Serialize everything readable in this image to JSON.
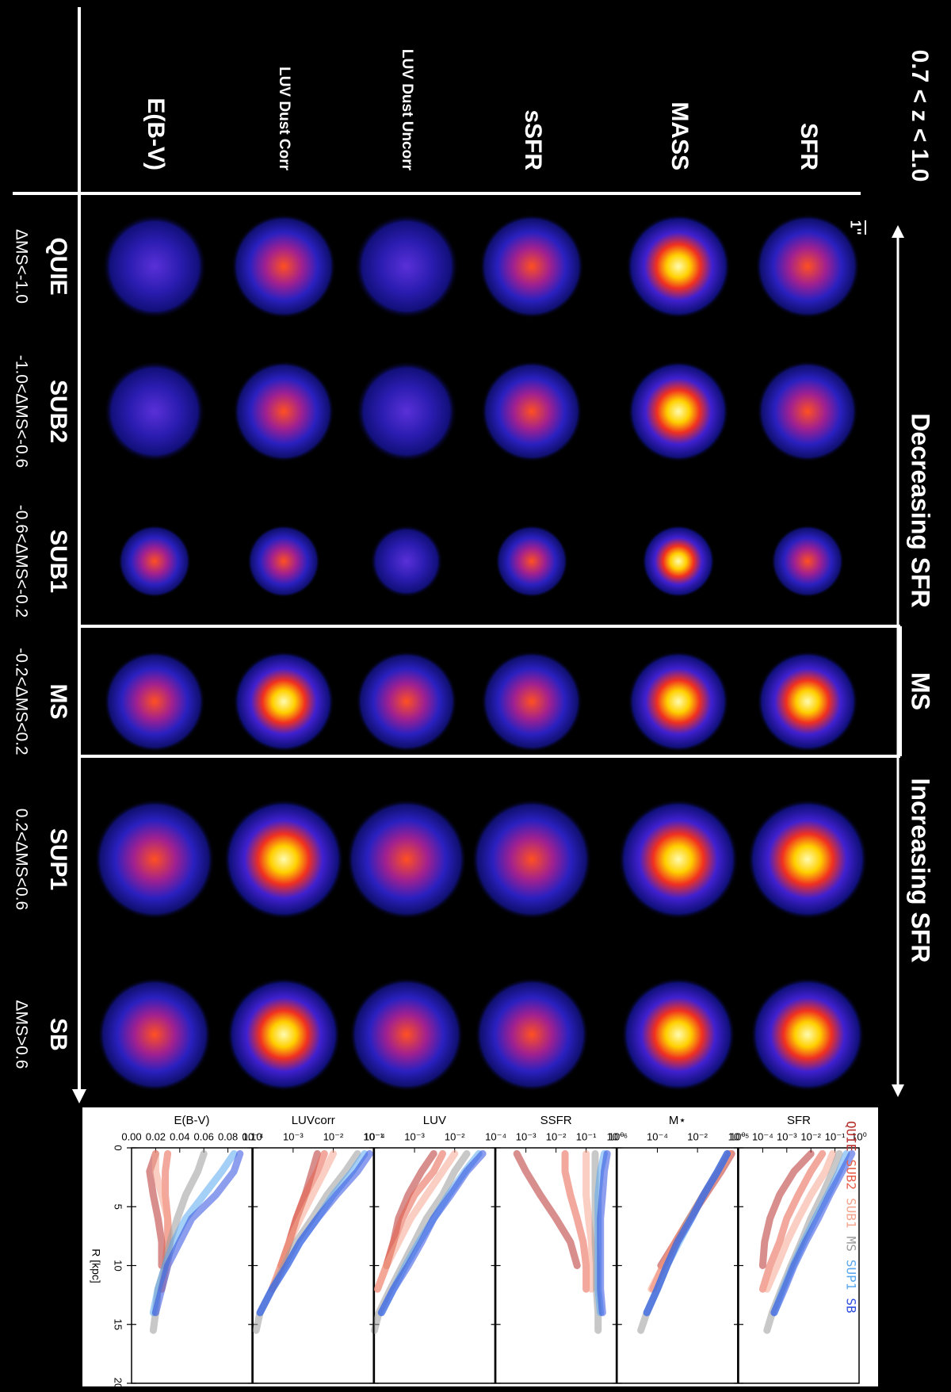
{
  "title": "0.7 < z < 1.0",
  "rows": [
    "SFR",
    "MASS",
    "sSFR",
    "LUV Dust Uncorr",
    "LUV Dust Corr",
    "E(B-V)"
  ],
  "columns": [
    {
      "label": "QUIE",
      "range": "ΔMS<-1.0"
    },
    {
      "label": "SUB2",
      "range": "-1.0<ΔMS<-0.6"
    },
    {
      "label": "SUB1",
      "range": "-0.6<ΔMS<-0.2"
    },
    {
      "label": "MS",
      "range": "-0.2<ΔMS<0.2"
    },
    {
      "label": "SUP1",
      "range": "0.2<ΔMS<0.6"
    },
    {
      "label": "SB",
      "range": "ΔMS>0.6"
    }
  ],
  "scale_bar": "1''",
  "side_labels": [
    "Decreasing SFR",
    "MS",
    "Increasing SFR"
  ],
  "chart_data": [
    {
      "type": "line",
      "title": "SFR",
      "log": true,
      "x": [
        0.5,
        2,
        4,
        6,
        8,
        10,
        12,
        14,
        15.5
      ],
      "xlim": [
        0,
        20
      ],
      "xticks": [
        0,
        5,
        10,
        15,
        20
      ],
      "ylim": [
        1e-05,
        1
      ],
      "yticks": [
        {
          "value": 1e-05,
          "label": "10⁻⁵"
        },
        {
          "value": 0.0001,
          "label": "10⁻⁴"
        },
        {
          "value": 0.001,
          "label": "10⁻³"
        },
        {
          "value": 0.01,
          "label": "10⁻²"
        },
        {
          "value": 0.1,
          "label": "10⁻¹"
        },
        {
          "value": 1,
          "label": "10⁰"
        }
      ],
      "series": [
        {
          "name": "QUIE",
          "color": "#b8312f",
          "values": [
            0.01,
            0.002,
            0.0005,
            0.0002,
            0.00012,
            0.0001,
            null,
            null,
            null
          ]
        },
        {
          "name": "SUB2",
          "color": "#e8604c",
          "values": [
            0.03,
            0.01,
            0.003,
            0.001,
            0.0005,
            0.0002,
            0.0001,
            null,
            null
          ]
        },
        {
          "name": "SUB1",
          "color": "#f5a58f",
          "values": [
            0.08,
            0.04,
            0.01,
            0.003,
            0.001,
            0.0004,
            0.00015,
            null,
            null
          ]
        },
        {
          "name": "MS",
          "color": "#9a9a9a",
          "values": [
            0.15,
            0.08,
            0.03,
            0.01,
            0.004,
            0.0015,
            0.0006,
            0.00025,
            0.00015
          ]
        },
        {
          "name": "SUP1",
          "color": "#5aa8f0",
          "values": [
            0.3,
            0.15,
            0.05,
            0.015,
            0.005,
            0.0018,
            0.0007,
            0.0003,
            null
          ]
        },
        {
          "name": "SB",
          "color": "#2f4fe0",
          "values": [
            0.5,
            0.2,
            0.06,
            0.02,
            0.006,
            0.002,
            0.0008,
            0.0003,
            null
          ]
        }
      ]
    },
    {
      "type": "line",
      "title": "M⋆",
      "log": true,
      "x": [
        0.5,
        2,
        4,
        6,
        8,
        10,
        12,
        14,
        15.5
      ],
      "xlim": [
        0,
        20
      ],
      "xticks": [
        0,
        5,
        10,
        15,
        20
      ],
      "ylim": [
        1e-06,
        1
      ],
      "yticks": [
        {
          "value": 1e-06,
          "label": "10⁻⁶"
        },
        {
          "value": 0.0001,
          "label": "10⁻⁴"
        },
        {
          "value": 0.01,
          "label": "10⁻²"
        },
        {
          "value": 1,
          "label": "10⁰"
        }
      ],
      "series": [
        {
          "color": "#b8312f",
          "values": [
            0.5,
            0.15,
            0.025,
            0.004,
            0.0008,
            0.00015,
            null,
            null,
            null
          ]
        },
        {
          "color": "#e8604c",
          "values": [
            0.4,
            0.12,
            0.02,
            0.004,
            0.0008,
            0.0002,
            6e-05,
            null,
            null
          ]
        },
        {
          "color": "#f5a58f",
          "values": [
            0.4,
            0.12,
            0.02,
            0.004,
            0.0008,
            0.0002,
            5e-05,
            null,
            null
          ]
        },
        {
          "color": "#9a9a9a",
          "values": [
            0.3,
            0.1,
            0.02,
            0.004,
            0.001,
            0.0003,
            0.0001,
            3e-05,
            1.5e-05
          ]
        },
        {
          "color": "#5aa8f0",
          "values": [
            0.3,
            0.1,
            0.02,
            0.005,
            0.0012,
            0.0003,
            0.0001,
            3e-05,
            null
          ]
        },
        {
          "color": "#2f4fe0",
          "values": [
            0.3,
            0.1,
            0.02,
            0.005,
            0.001,
            0.0003,
            0.0001,
            3e-05,
            null
          ]
        }
      ]
    },
    {
      "type": "line",
      "title": "SSFR",
      "log": true,
      "x": [
        0.5,
        2,
        4,
        6,
        8,
        10,
        12,
        14,
        15.5
      ],
      "xlim": [
        0,
        20
      ],
      "xticks": [
        0,
        5,
        10,
        15,
        20
      ],
      "ylim": [
        0.0001,
        1
      ],
      "yticks": [
        {
          "value": 0.0001,
          "label": "10⁻⁴"
        },
        {
          "value": 0.001,
          "label": "10⁻³"
        },
        {
          "value": 0.01,
          "label": "10⁻²"
        },
        {
          "value": 0.1,
          "label": "10⁻¹"
        },
        {
          "value": 1,
          "label": "10⁰"
        }
      ],
      "series": [
        {
          "color": "#b8312f",
          "values": [
            0.0005,
            0.001,
            0.003,
            0.01,
            0.03,
            0.05,
            null,
            null,
            null
          ]
        },
        {
          "color": "#e8604c",
          "values": [
            0.02,
            0.02,
            0.03,
            0.05,
            0.08,
            0.1,
            0.1,
            null,
            null
          ]
        },
        {
          "color": "#f5a58f",
          "values": [
            0.1,
            0.1,
            0.1,
            0.12,
            0.15,
            0.15,
            0.15,
            null,
            null
          ]
        },
        {
          "color": "#9a9a9a",
          "values": [
            0.2,
            0.2,
            0.2,
            0.2,
            0.2,
            0.22,
            0.22,
            0.25,
            0.25
          ]
        },
        {
          "color": "#5aa8f0",
          "values": [
            0.4,
            0.3,
            0.25,
            0.25,
            0.25,
            0.25,
            0.25,
            0.3,
            null
          ]
        },
        {
          "color": "#2f4fe0",
          "values": [
            0.5,
            0.4,
            0.35,
            0.3,
            0.3,
            0.3,
            0.3,
            0.35,
            null
          ]
        }
      ]
    },
    {
      "type": "line",
      "title": "LUV",
      "log": true,
      "x": [
        0.5,
        2,
        4,
        6,
        8,
        10,
        12,
        14,
        15.5
      ],
      "xlim": [
        0,
        20
      ],
      "xticks": [
        0,
        5,
        10,
        15,
        20
      ],
      "ylim": [
        0.0001,
        0.1
      ],
      "yticks": [
        {
          "value": 0.0001,
          "label": "10⁻⁴"
        },
        {
          "value": 0.001,
          "label": "10⁻³"
        },
        {
          "value": 0.01,
          "label": "10⁻²"
        }
      ],
      "series": [
        {
          "color": "#b8312f",
          "values": [
            0.003,
            0.0015,
            0.0007,
            0.0004,
            0.0003,
            0.0002,
            null,
            null,
            null
          ]
        },
        {
          "color": "#e8604c",
          "values": [
            0.005,
            0.003,
            0.001,
            0.0005,
            0.0003,
            0.0002,
            0.00012,
            null,
            null
          ]
        },
        {
          "color": "#f5a58f",
          "values": [
            0.01,
            0.005,
            0.002,
            0.0008,
            0.0004,
            0.0002,
            0.00012,
            null,
            null
          ]
        },
        {
          "color": "#9a9a9a",
          "values": [
            0.02,
            0.01,
            0.005,
            0.002,
            0.001,
            0.0005,
            0.00025,
            0.00013,
            0.0001
          ]
        },
        {
          "color": "#5aa8f0",
          "values": [
            0.04,
            0.018,
            0.007,
            0.003,
            0.0013,
            0.0006,
            0.0003,
            0.00015,
            null
          ]
        },
        {
          "color": "#2f4fe0",
          "values": [
            0.05,
            0.02,
            0.008,
            0.003,
            0.0015,
            0.0007,
            0.0003,
            0.00015,
            null
          ]
        }
      ]
    },
    {
      "type": "line",
      "title": "LUVcorr",
      "log": true,
      "x": [
        0.5,
        2,
        4,
        6,
        8,
        10,
        12,
        14,
        15.5
      ],
      "xlim": [
        0,
        20
      ],
      "xticks": [
        0,
        5,
        10,
        15,
        20
      ],
      "ylim": [
        0.0001,
        0.1
      ],
      "yticks": [
        {
          "value": 0.0001,
          "label": "10⁻⁴"
        },
        {
          "value": 0.001,
          "label": "10⁻³"
        },
        {
          "value": 0.01,
          "label": "10⁻²"
        },
        {
          "value": 0.1,
          "label": "10⁻¹"
        }
      ],
      "series": [
        {
          "color": "#b8312f",
          "values": [
            0.004,
            0.003,
            0.002,
            0.0012,
            0.0008,
            0.0005,
            null,
            null,
            null
          ]
        },
        {
          "color": "#e8604c",
          "values": [
            0.006,
            0.004,
            0.002,
            0.0012,
            0.0008,
            0.0005,
            0.0003,
            null,
            null
          ]
        },
        {
          "color": "#f5a58f",
          "values": [
            0.01,
            0.006,
            0.003,
            0.0015,
            0.0008,
            0.0005,
            0.0003,
            null,
            null
          ]
        },
        {
          "color": "#9a9a9a",
          "values": [
            0.04,
            0.02,
            0.007,
            0.003,
            0.0012,
            0.0006,
            0.0003,
            0.00015,
            0.00012
          ]
        },
        {
          "color": "#5aa8f0",
          "values": [
            0.06,
            0.03,
            0.01,
            0.004,
            0.0015,
            0.0007,
            0.0003,
            0.00015,
            null
          ]
        },
        {
          "color": "#2f4fe0",
          "values": [
            0.08,
            0.04,
            0.012,
            0.004,
            0.0015,
            0.0007,
            0.0003,
            0.00015,
            null
          ]
        }
      ]
    },
    {
      "type": "line",
      "title": "E(B-V)",
      "log": false,
      "xlabel": "R [kpc]",
      "x": [
        0.5,
        2,
        4,
        6,
        8,
        10,
        12,
        14,
        15.5
      ],
      "xlim": [
        0,
        20
      ],
      "xticks": [
        0,
        5,
        10,
        15,
        20
      ],
      "ylim": [
        0,
        0.1
      ],
      "yticks": [
        {
          "value": 0,
          "label": "0.00"
        },
        {
          "value": 0.02,
          "label": "0.02"
        },
        {
          "value": 0.04,
          "label": "0.04"
        },
        {
          "value": 0.06,
          "label": "0.06"
        },
        {
          "value": 0.08,
          "label": "0.08"
        },
        {
          "value": 0.1,
          "label": "0.10"
        }
      ],
      "series": [
        {
          "color": "#b8312f",
          "values": [
            0.02,
            0.015,
            0.018,
            0.022,
            0.025,
            0.025,
            null,
            null,
            null
          ]
        },
        {
          "color": "#e8604c",
          "values": [
            0.03,
            0.028,
            0.028,
            0.03,
            0.03,
            0.028,
            0.025,
            null,
            null
          ]
        },
        {
          "color": "#f5a58f",
          "values": [
            0.02,
            0.02,
            0.025,
            0.03,
            0.032,
            0.03,
            0.025,
            null,
            null
          ]
        },
        {
          "color": "#9a9a9a",
          "values": [
            0.06,
            0.055,
            0.045,
            0.038,
            0.032,
            0.028,
            0.022,
            0.02,
            0.018
          ]
        },
        {
          "color": "#5aa8f0",
          "values": [
            0.085,
            0.075,
            0.06,
            0.045,
            0.035,
            0.028,
            0.022,
            0.018,
            null
          ]
        },
        {
          "color": "#2f4fe0",
          "values": [
            0.09,
            0.085,
            0.07,
            0.05,
            0.04,
            0.03,
            0.025,
            0.02,
            null
          ]
        }
      ]
    }
  ]
}
